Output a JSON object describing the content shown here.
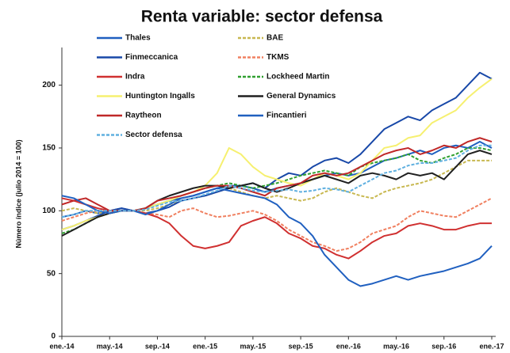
{
  "chart_data": {
    "type": "line",
    "title": "Renta variable: sector defensa",
    "y_label": "Número índice (julio 2014 = 100)",
    "categories": [
      "ene.-14",
      null,
      null,
      null,
      "may.-14",
      null,
      null,
      null,
      "sep.-14",
      null,
      null,
      null,
      "ene.-15",
      null,
      null,
      null,
      "may.-15",
      null,
      null,
      null,
      "sep.-15",
      null,
      null,
      null,
      "ene.-16",
      null,
      null,
      null,
      "may.-16",
      null,
      null,
      null,
      "sep.-16",
      null,
      null,
      null,
      "ene.-17"
    ],
    "ylim": [
      0,
      230
    ],
    "yticks": [
      0,
      50,
      100,
      150,
      200
    ],
    "series": [
      {
        "name": "Thales",
        "color": "#1f5fc0",
        "dashed": false,
        "values": [
          95,
          97,
          100,
          98,
          100,
          102,
          100,
          102,
          105,
          108,
          110,
          112,
          115,
          118,
          120,
          120,
          118,
          115,
          118,
          120,
          122,
          125,
          128,
          130,
          128,
          130,
          135,
          140,
          142,
          145,
          148,
          145,
          150,
          152,
          150,
          155,
          150
        ]
      },
      {
        "name": "BAE",
        "color": "#c8b850",
        "dashed": true,
        "values": [
          100,
          102,
          100,
          98,
          100,
          100,
          100,
          100,
          102,
          105,
          108,
          110,
          112,
          115,
          118,
          115,
          112,
          110,
          112,
          110,
          108,
          110,
          115,
          118,
          115,
          112,
          110,
          115,
          118,
          120,
          122,
          125,
          130,
          135,
          140,
          140,
          140
        ]
      },
      {
        "name": "Finmeccanica",
        "color": "#1848a8",
        "dashed": false,
        "values": [
          85,
          88,
          92,
          96,
          100,
          102,
          100,
          98,
          100,
          103,
          108,
          110,
          112,
          115,
          118,
          120,
          122,
          118,
          125,
          130,
          128,
          135,
          140,
          142,
          138,
          145,
          155,
          165,
          170,
          175,
          172,
          180,
          185,
          190,
          200,
          210,
          205
        ]
      },
      {
        "name": "TKMS",
        "color": "#f08060",
        "dashed": true,
        "values": [
          92,
          95,
          98,
          100,
          100,
          100,
          100,
          98,
          97,
          95,
          100,
          102,
          98,
          95,
          96,
          98,
          100,
          97,
          92,
          85,
          80,
          75,
          72,
          68,
          70,
          75,
          82,
          85,
          88,
          95,
          100,
          98,
          96,
          95,
          100,
          105,
          110
        ]
      },
      {
        "name": "Indra",
        "color": "#d03030",
        "dashed": false,
        "values": [
          110,
          108,
          105,
          102,
          100,
          100,
          100,
          98,
          95,
          90,
          80,
          72,
          70,
          72,
          75,
          88,
          92,
          95,
          90,
          82,
          78,
          72,
          70,
          65,
          62,
          68,
          75,
          80,
          82,
          88,
          90,
          88,
          85,
          85,
          88,
          90,
          90
        ]
      },
      {
        "name": "Lockheed Martin",
        "color": "#30a030",
        "dashed": true,
        "values": [
          82,
          85,
          90,
          95,
          98,
          100,
          100,
          102,
          105,
          108,
          112,
          115,
          118,
          120,
          122,
          120,
          118,
          120,
          122,
          125,
          128,
          130,
          132,
          130,
          128,
          135,
          138,
          140,
          142,
          145,
          140,
          138,
          142,
          145,
          150,
          150,
          148
        ]
      },
      {
        "name": "Huntington Ingalls",
        "color": "#f6f070",
        "dashed": false,
        "values": [
          85,
          88,
          92,
          95,
          98,
          100,
          100,
          102,
          105,
          108,
          112,
          115,
          120,
          130,
          150,
          145,
          135,
          128,
          125,
          122,
          120,
          125,
          130,
          128,
          125,
          130,
          140,
          150,
          152,
          158,
          160,
          170,
          175,
          180,
          190,
          198,
          205
        ]
      },
      {
        "name": "General Dynamics",
        "color": "#202020",
        "dashed": false,
        "values": [
          80,
          85,
          90,
          95,
          98,
          100,
          100,
          102,
          108,
          112,
          115,
          118,
          120,
          120,
          118,
          120,
          122,
          118,
          115,
          118,
          122,
          125,
          128,
          125,
          122,
          128,
          130,
          128,
          125,
          130,
          128,
          130,
          125,
          135,
          145,
          148,
          145
        ]
      },
      {
        "name": "Raytheon",
        "color": "#c02828",
        "dashed": false,
        "values": [
          105,
          108,
          110,
          105,
          100,
          100,
          100,
          102,
          108,
          110,
          112,
          115,
          118,
          120,
          120,
          118,
          115,
          112,
          118,
          120,
          122,
          128,
          130,
          128,
          130,
          135,
          140,
          145,
          148,
          150,
          145,
          148,
          152,
          150,
          155,
          158,
          155
        ]
      },
      {
        "name": "Fincantieri",
        "color": "#2060c0",
        "dashed": false,
        "values": [
          112,
          110,
          105,
          100,
          98,
          100,
          100,
          97,
          100,
          105,
          110,
          112,
          115,
          118,
          116,
          114,
          112,
          110,
          105,
          95,
          90,
          80,
          65,
          55,
          45,
          40,
          42,
          45,
          48,
          45,
          48,
          50,
          52,
          55,
          58,
          62,
          72
        ]
      },
      {
        "name": "Sector defensa",
        "color": "#60b0e0",
        "dashed": true,
        "values": [
          95,
          97,
          100,
          100,
          100,
          100,
          100,
          101,
          104,
          107,
          108,
          110,
          113,
          116,
          120,
          118,
          116,
          115,
          116,
          117,
          115,
          116,
          118,
          117,
          115,
          120,
          125,
          130,
          132,
          136,
          138,
          138,
          140,
          142,
          148,
          152,
          152
        ]
      }
    ]
  }
}
